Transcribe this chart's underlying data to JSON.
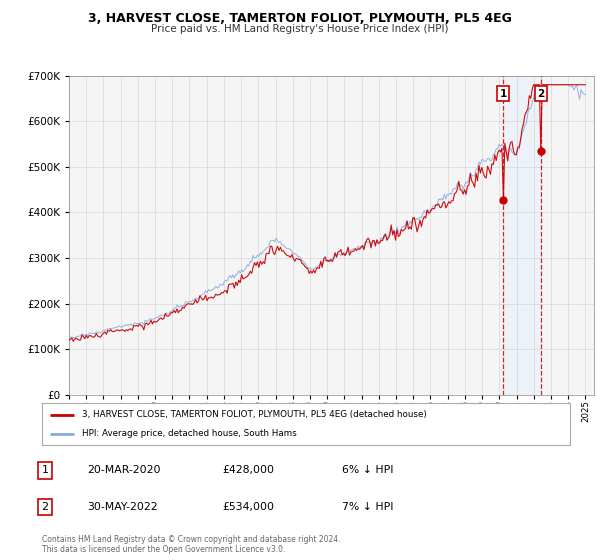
{
  "title": "3, HARVEST CLOSE, TAMERTON FOLIOT, PLYMOUTH, PL5 4EG",
  "subtitle": "Price paid vs. HM Land Registry's House Price Index (HPI)",
  "legend_line1": "3, HARVEST CLOSE, TAMERTON FOLIOT, PLYMOUTH, PL5 4EG (detached house)",
  "legend_line2": "HPI: Average price, detached house, South Hams",
  "transaction1_date": "20-MAR-2020",
  "transaction1_price": "£428,000",
  "transaction1_hpi": "6% ↓ HPI",
  "transaction2_date": "30-MAY-2022",
  "transaction2_price": "£534,000",
  "transaction2_hpi": "7% ↓ HPI",
  "footer_line1": "Contains HM Land Registry data © Crown copyright and database right 2024.",
  "footer_line2": "This data is licensed under the Open Government Licence v3.0.",
  "red_color": "#cc0000",
  "blue_color": "#88aadd",
  "shaded_region_color": "#ddeeff",
  "grid_color": "#cccccc",
  "transaction1_x": 2020.22,
  "transaction2_x": 2022.41,
  "transaction1_y": 428000,
  "transaction2_y": 534000,
  "ylim": [
    0,
    700000
  ],
  "xlim_start": 1995,
  "xlim_end": 2025.5
}
